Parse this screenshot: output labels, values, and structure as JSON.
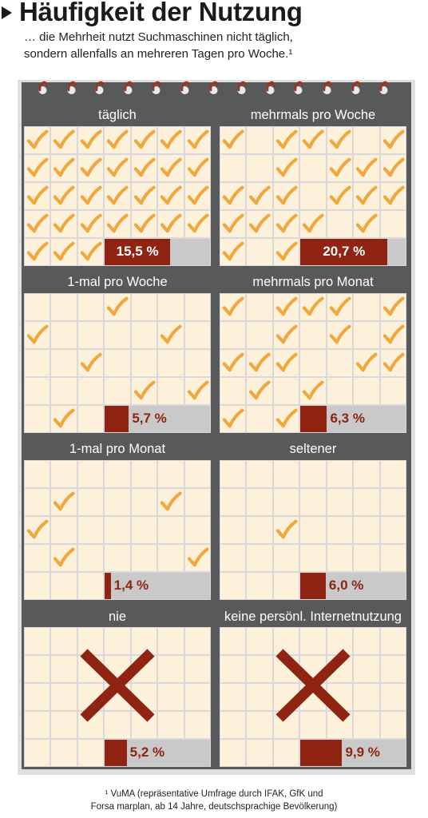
{
  "title": "Häufigkeit der Nutzung",
  "subtitle_lines": [
    "… die Mehrheit nutzt Suchmaschinen nicht täglich,",
    "sondern allenfalls an mehreren Tagen pro Woche.¹"
  ],
  "footnote_lines": [
    "¹ VuMA (repräsentative Umfrage durch IFAK, GfK und",
    "Forsa marplan, ab 14 Jahre, deutschsprachige Bevölkerung)"
  ],
  "colors": {
    "calendar": "#57595a",
    "cell": "#fdf1dc",
    "check": "#f0a73c",
    "bar": "#8f2412",
    "bar_track": "#c9c9c9",
    "cross": "#8f2412"
  },
  "icons": {
    "check": "checkmark-icon",
    "cross": "cross-icon",
    "ring": "spiral-ring-icon"
  },
  "chart_data": {
    "type": "bar",
    "categories": [
      "täglich",
      "mehrmals pro Woche",
      "1-mal pro Woche",
      "mehrmals pro Monat",
      "1-mal pro Monat",
      "seltener",
      "nie",
      "keine persönl. Internetnutzung"
    ],
    "values": [
      15.5,
      20.7,
      5.7,
      6.3,
      1.4,
      6.0,
      5.2,
      9.9
    ],
    "value_labels": [
      "15,5 %",
      "20,7 %",
      "5,7 %",
      "6,3 %",
      "1,4 %",
      "6,0 %",
      "5,2 %",
      "9,9 %"
    ],
    "unit": "%",
    "xlim": [
      0,
      25
    ],
    "title": "Häufigkeit der Nutzung",
    "xlabel": "",
    "ylabel": "",
    "panels": [
      {
        "label": "täglich",
        "value": 15.5,
        "value_label": "15,5 %",
        "marker": "check",
        "checked": [
          [
            0,
            0
          ],
          [
            0,
            1
          ],
          [
            0,
            2
          ],
          [
            0,
            3
          ],
          [
            0,
            4
          ],
          [
            0,
            5
          ],
          [
            0,
            6
          ],
          [
            1,
            0
          ],
          [
            1,
            1
          ],
          [
            1,
            2
          ],
          [
            1,
            3
          ],
          [
            1,
            4
          ],
          [
            1,
            5
          ],
          [
            1,
            6
          ],
          [
            2,
            0
          ],
          [
            2,
            1
          ],
          [
            2,
            2
          ],
          [
            2,
            3
          ],
          [
            2,
            4
          ],
          [
            2,
            5
          ],
          [
            2,
            6
          ],
          [
            3,
            0
          ],
          [
            3,
            1
          ],
          [
            3,
            2
          ],
          [
            3,
            3
          ],
          [
            3,
            4
          ],
          [
            3,
            5
          ],
          [
            3,
            6
          ],
          [
            4,
            0
          ],
          [
            4,
            1
          ],
          [
            4,
            2
          ]
        ]
      },
      {
        "label": "mehrmals pro Woche",
        "value": 20.7,
        "value_label": "20,7 %",
        "marker": "check",
        "checked": [
          [
            0,
            0
          ],
          [
            0,
            2
          ],
          [
            0,
            3
          ],
          [
            0,
            4
          ],
          [
            0,
            6
          ],
          [
            1,
            2
          ],
          [
            1,
            4
          ],
          [
            1,
            5
          ],
          [
            1,
            6
          ],
          [
            2,
            0
          ],
          [
            2,
            1
          ],
          [
            2,
            2
          ],
          [
            2,
            4
          ],
          [
            2,
            5
          ],
          [
            2,
            6
          ],
          [
            3,
            0
          ],
          [
            3,
            1
          ],
          [
            3,
            2
          ],
          [
            3,
            3
          ],
          [
            3,
            5
          ],
          [
            4,
            0
          ],
          [
            4,
            2
          ]
        ]
      },
      {
        "label": "1-mal pro Woche",
        "value": 5.7,
        "value_label": "5,7 %",
        "marker": "check",
        "checked": [
          [
            0,
            3
          ],
          [
            1,
            0
          ],
          [
            1,
            5
          ],
          [
            2,
            2
          ],
          [
            3,
            4
          ],
          [
            3,
            6
          ],
          [
            4,
            1
          ]
        ]
      },
      {
        "label": "mehrmals pro Monat",
        "value": 6.3,
        "value_label": "6,3 %",
        "marker": "check",
        "checked": [
          [
            0,
            0
          ],
          [
            0,
            2
          ],
          [
            0,
            3
          ],
          [
            0,
            4
          ],
          [
            0,
            6
          ],
          [
            1,
            2
          ],
          [
            1,
            4
          ],
          [
            1,
            6
          ],
          [
            2,
            0
          ],
          [
            2,
            1
          ],
          [
            2,
            2
          ],
          [
            2,
            5
          ],
          [
            2,
            6
          ],
          [
            3,
            1
          ],
          [
            3,
            3
          ],
          [
            4,
            0
          ],
          [
            4,
            2
          ]
        ]
      },
      {
        "label": "1-mal pro Monat",
        "value": 1.4,
        "value_label": "1,4 %",
        "marker": "check",
        "checked": [
          [
            1,
            1
          ],
          [
            1,
            5
          ],
          [
            2,
            0
          ],
          [
            3,
            1
          ],
          [
            3,
            6
          ]
        ]
      },
      {
        "label": "seltener",
        "value": 6.0,
        "value_label": "6,0 %",
        "marker": "check",
        "checked": [
          [
            2,
            2
          ]
        ]
      },
      {
        "label": "nie",
        "value": 5.2,
        "value_label": "5,2 %",
        "marker": "cross",
        "checked": []
      },
      {
        "label": "keine persönl. Internetnutzung",
        "value": 9.9,
        "value_label": "9,9 %",
        "marker": "cross",
        "checked": []
      }
    ]
  }
}
